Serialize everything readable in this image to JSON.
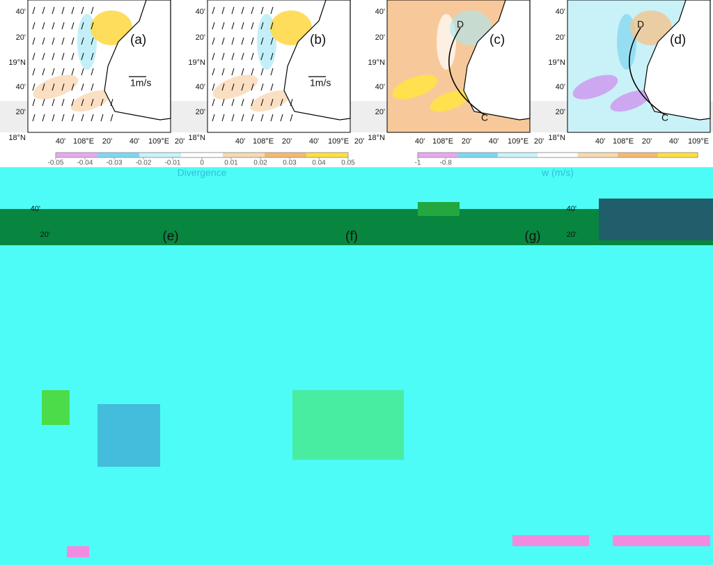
{
  "map_axes": {
    "y_labels": [
      "40'",
      "20'",
      "19°N",
      "40'",
      "20'",
      "18°N"
    ],
    "x_labels": [
      "40'",
      "108°E",
      "20'",
      "40'",
      "109°E",
      "20'"
    ]
  },
  "panels": [
    {
      "label": "(a)",
      "scale": "1m/s",
      "style": "divergence",
      "arrows": true
    },
    {
      "label": "(b)",
      "scale": "1m/s",
      "style": "divergence",
      "arrows": true
    },
    {
      "label": "(c)",
      "points": [
        "D",
        "C"
      ],
      "style": "warm"
    },
    {
      "label": "(d)",
      "points": [
        "D",
        "C"
      ],
      "style": "cool"
    }
  ],
  "colorbars": [
    {
      "label": "Divergence",
      "lim": [
        -0.05,
        0.05
      ],
      "ticks": [
        -0.05,
        -0.04,
        -0.03,
        -0.02,
        -0.01,
        0,
        0.01,
        0.02,
        0.03,
        0.04,
        0.05
      ]
    },
    {
      "label": "w (m/s)",
      "lim": [
        -1,
        1
      ],
      "ticks": [
        -1,
        -0.8
      ]
    }
  ],
  "lower_panels": [
    {
      "label": "(e)"
    },
    {
      "label": "(f)"
    },
    {
      "label": "(g)"
    }
  ],
  "lower_ticks": [
    "40'",
    "20'"
  ]
}
